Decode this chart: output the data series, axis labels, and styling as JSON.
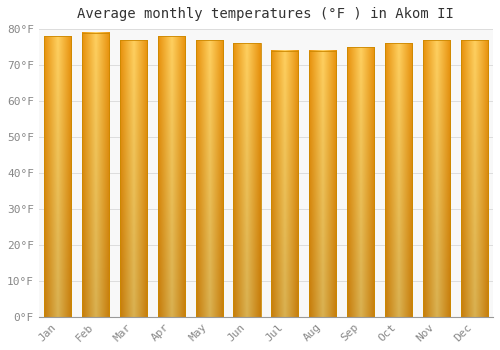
{
  "title": "Average monthly temperatures (°F ) in Akom II",
  "months": [
    "Jan",
    "Feb",
    "Mar",
    "Apr",
    "May",
    "Jun",
    "Jul",
    "Aug",
    "Sep",
    "Oct",
    "Nov",
    "Dec"
  ],
  "values": [
    78,
    79,
    77,
    78,
    77,
    76,
    74,
    74,
    75,
    76,
    77,
    77
  ],
  "bar_color_top": "#F5A800",
  "bar_color_mid": "#FFD060",
  "bar_color_bot": "#F08000",
  "ylim": [
    0,
    80
  ],
  "yticks": [
    0,
    10,
    20,
    30,
    40,
    50,
    60,
    70,
    80
  ],
  "ytick_labels": [
    "0°F",
    "10°F",
    "20°F",
    "30°F",
    "40°F",
    "50°F",
    "60°F",
    "70°F",
    "80°F"
  ],
  "background_color": "#FFFFFF",
  "plot_bg_color": "#F8F8F8",
  "grid_color": "#DDDDDD",
  "title_fontsize": 10,
  "tick_fontsize": 8,
  "bar_width": 0.72
}
